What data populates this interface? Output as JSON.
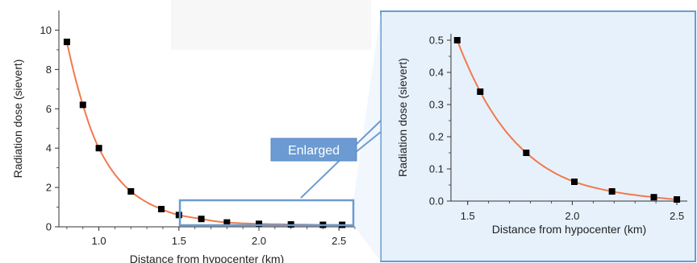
{
  "colors": {
    "curve": "#F07A4E",
    "marker": "#000000",
    "highlight_border": "#6B9BD2",
    "inset_fill": "#E7F1FB",
    "callout_fill": "#6B9BD2",
    "axis": "#333333"
  },
  "callout": {
    "label": "Enlarged"
  },
  "chart_data": [
    {
      "type": "scatter",
      "xlabel": "Distance from hypocenter (km)",
      "ylabel": "Radiation dose (sievert)",
      "xlim": [
        0.75,
        2.6
      ],
      "ylim": [
        0,
        11
      ],
      "xticks": [
        1.0,
        1.5,
        2.0,
        2.5
      ],
      "xtick_labels": [
        "1.0",
        "1.5",
        "2.0",
        "2.5"
      ],
      "yticks": [
        0,
        2,
        4,
        6,
        8,
        10
      ],
      "ytick_labels": [
        "0",
        "2",
        "4",
        "6",
        "8",
        "10"
      ],
      "fit_curve": true,
      "grid": false,
      "series": [
        {
          "x": [
            0.8,
            0.9,
            1.0,
            1.2,
            1.39,
            1.5,
            1.64,
            1.8,
            2.0,
            2.2,
            2.4,
            2.52
          ],
          "values": [
            9.4,
            6.2,
            4.0,
            1.8,
            0.9,
            0.6,
            0.4,
            0.22,
            0.15,
            0.12,
            0.1,
            0.1
          ]
        }
      ]
    },
    {
      "type": "scatter",
      "xlabel": "Distance from hypocenter (km)",
      "ylabel": "Radiation dose (sievert)",
      "xlim": [
        1.42,
        2.55
      ],
      "ylim": [
        0,
        0.52
      ],
      "xticks": [
        1.5,
        2.0,
        2.5
      ],
      "xtick_labels": [
        "1.5",
        "2.0",
        "2.5"
      ],
      "yticks": [
        0.0,
        0.1,
        0.2,
        0.3,
        0.4,
        0.5
      ],
      "ytick_labels": [
        "0.0",
        "0.1",
        "0.2",
        "0.3",
        "0.4",
        "0.5"
      ],
      "fit_curve": true,
      "grid": false,
      "series": [
        {
          "x": [
            1.45,
            1.56,
            1.78,
            2.01,
            2.19,
            2.39,
            2.5
          ],
          "values": [
            0.5,
            0.34,
            0.15,
            0.06,
            0.03,
            0.012,
            0.005
          ]
        }
      ]
    }
  ]
}
